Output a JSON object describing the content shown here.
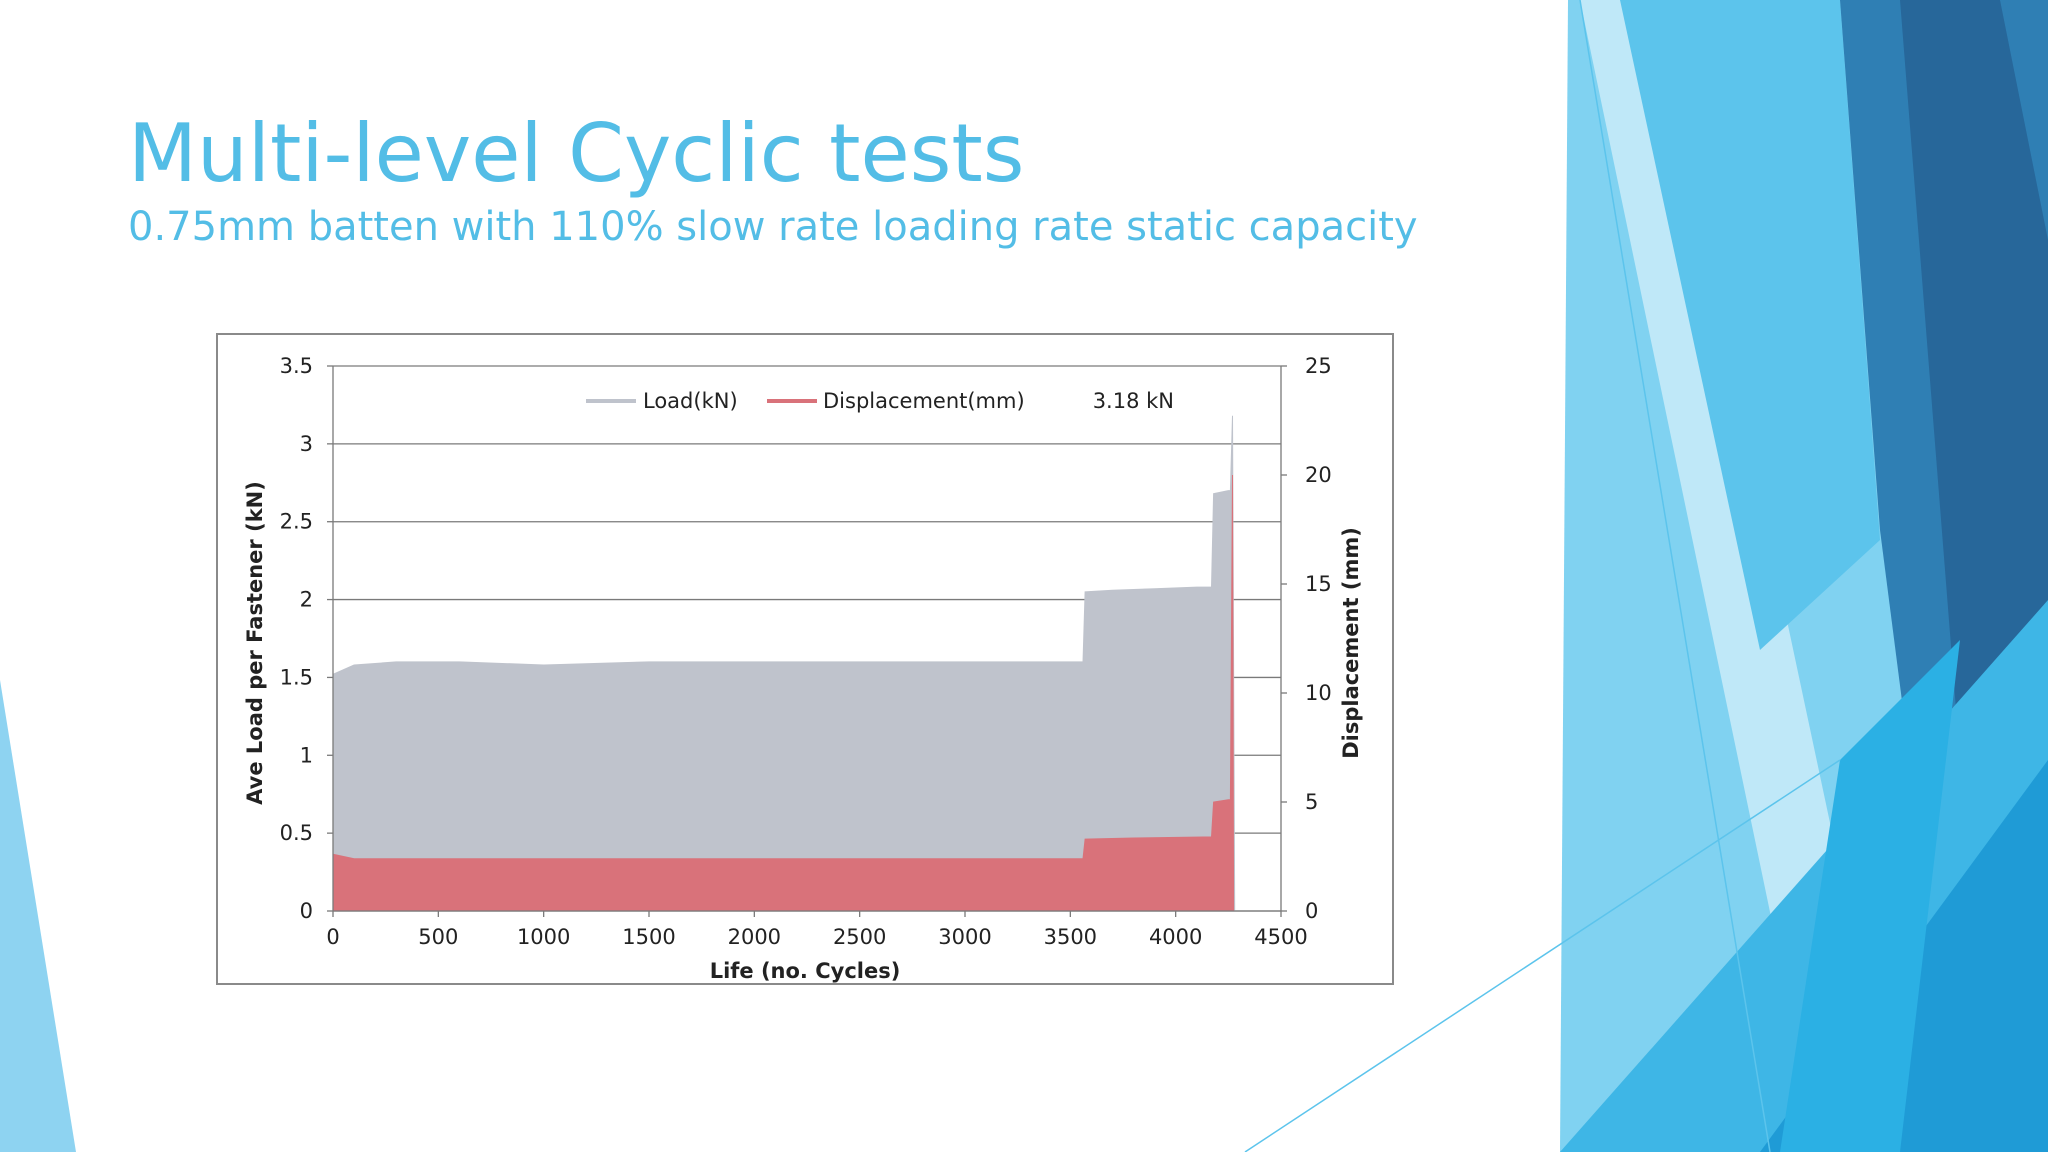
{
  "slide": {
    "title": "Multi-level Cyclic tests",
    "subtitle": "0.75mm batten with 110% slow rate loading rate static capacity"
  },
  "colors": {
    "title": "#53bde6",
    "load": "#bfc3cc",
    "displacement": "#d9727a",
    "deco_light": "#7fd0f0",
    "deco_mid": "#38b4e6",
    "deco_dark": "#2a6fa1"
  },
  "chart_data": {
    "type": "area",
    "xlabel": "Life (no. Cycles)",
    "ylabel": "Ave Load per Fastener (kN)",
    "y2label": "Displacement (mm)",
    "xlim": [
      0,
      4500
    ],
    "ylim": [
      0,
      3.5
    ],
    "y2lim": [
      0,
      25
    ],
    "x_ticks": [
      "0",
      "500",
      "1000",
      "1500",
      "2000",
      "2500",
      "3000",
      "3500",
      "4000",
      "4500"
    ],
    "y_ticks": [
      "0",
      "0.5",
      "1",
      "1.5",
      "2",
      "2.5",
      "3",
      "3.5"
    ],
    "y2_ticks": [
      "0",
      "5",
      "10",
      "15",
      "20",
      "25"
    ],
    "grid": true,
    "legend": [
      "Load(kN)",
      "Displacement(mm)"
    ],
    "annotation": "3.18 kN",
    "series": [
      {
        "name": "Load(kN)",
        "axis": "left",
        "x": [
          0,
          100,
          300,
          600,
          1000,
          1500,
          2000,
          2500,
          3000,
          3400,
          3560,
          3570,
          3700,
          3900,
          4100,
          4170,
          4180,
          4250,
          4260,
          4270,
          4280
        ],
        "values": [
          1.52,
          1.58,
          1.6,
          1.6,
          1.58,
          1.6,
          1.6,
          1.6,
          1.6,
          1.6,
          1.6,
          2.05,
          2.06,
          2.07,
          2.08,
          2.08,
          2.68,
          2.7,
          2.7,
          3.18,
          0
        ]
      },
      {
        "name": "Displacement(mm)",
        "axis": "right",
        "x": [
          0,
          100,
          600,
          1500,
          2500,
          3000,
          3560,
          3570,
          3800,
          4170,
          4180,
          4250,
          4260,
          4270,
          4275
        ],
        "values": [
          2.6,
          2.4,
          2.4,
          2.4,
          2.4,
          2.4,
          2.4,
          3.3,
          3.35,
          3.4,
          5.0,
          5.1,
          5.1,
          20.0,
          0
        ]
      }
    ]
  }
}
